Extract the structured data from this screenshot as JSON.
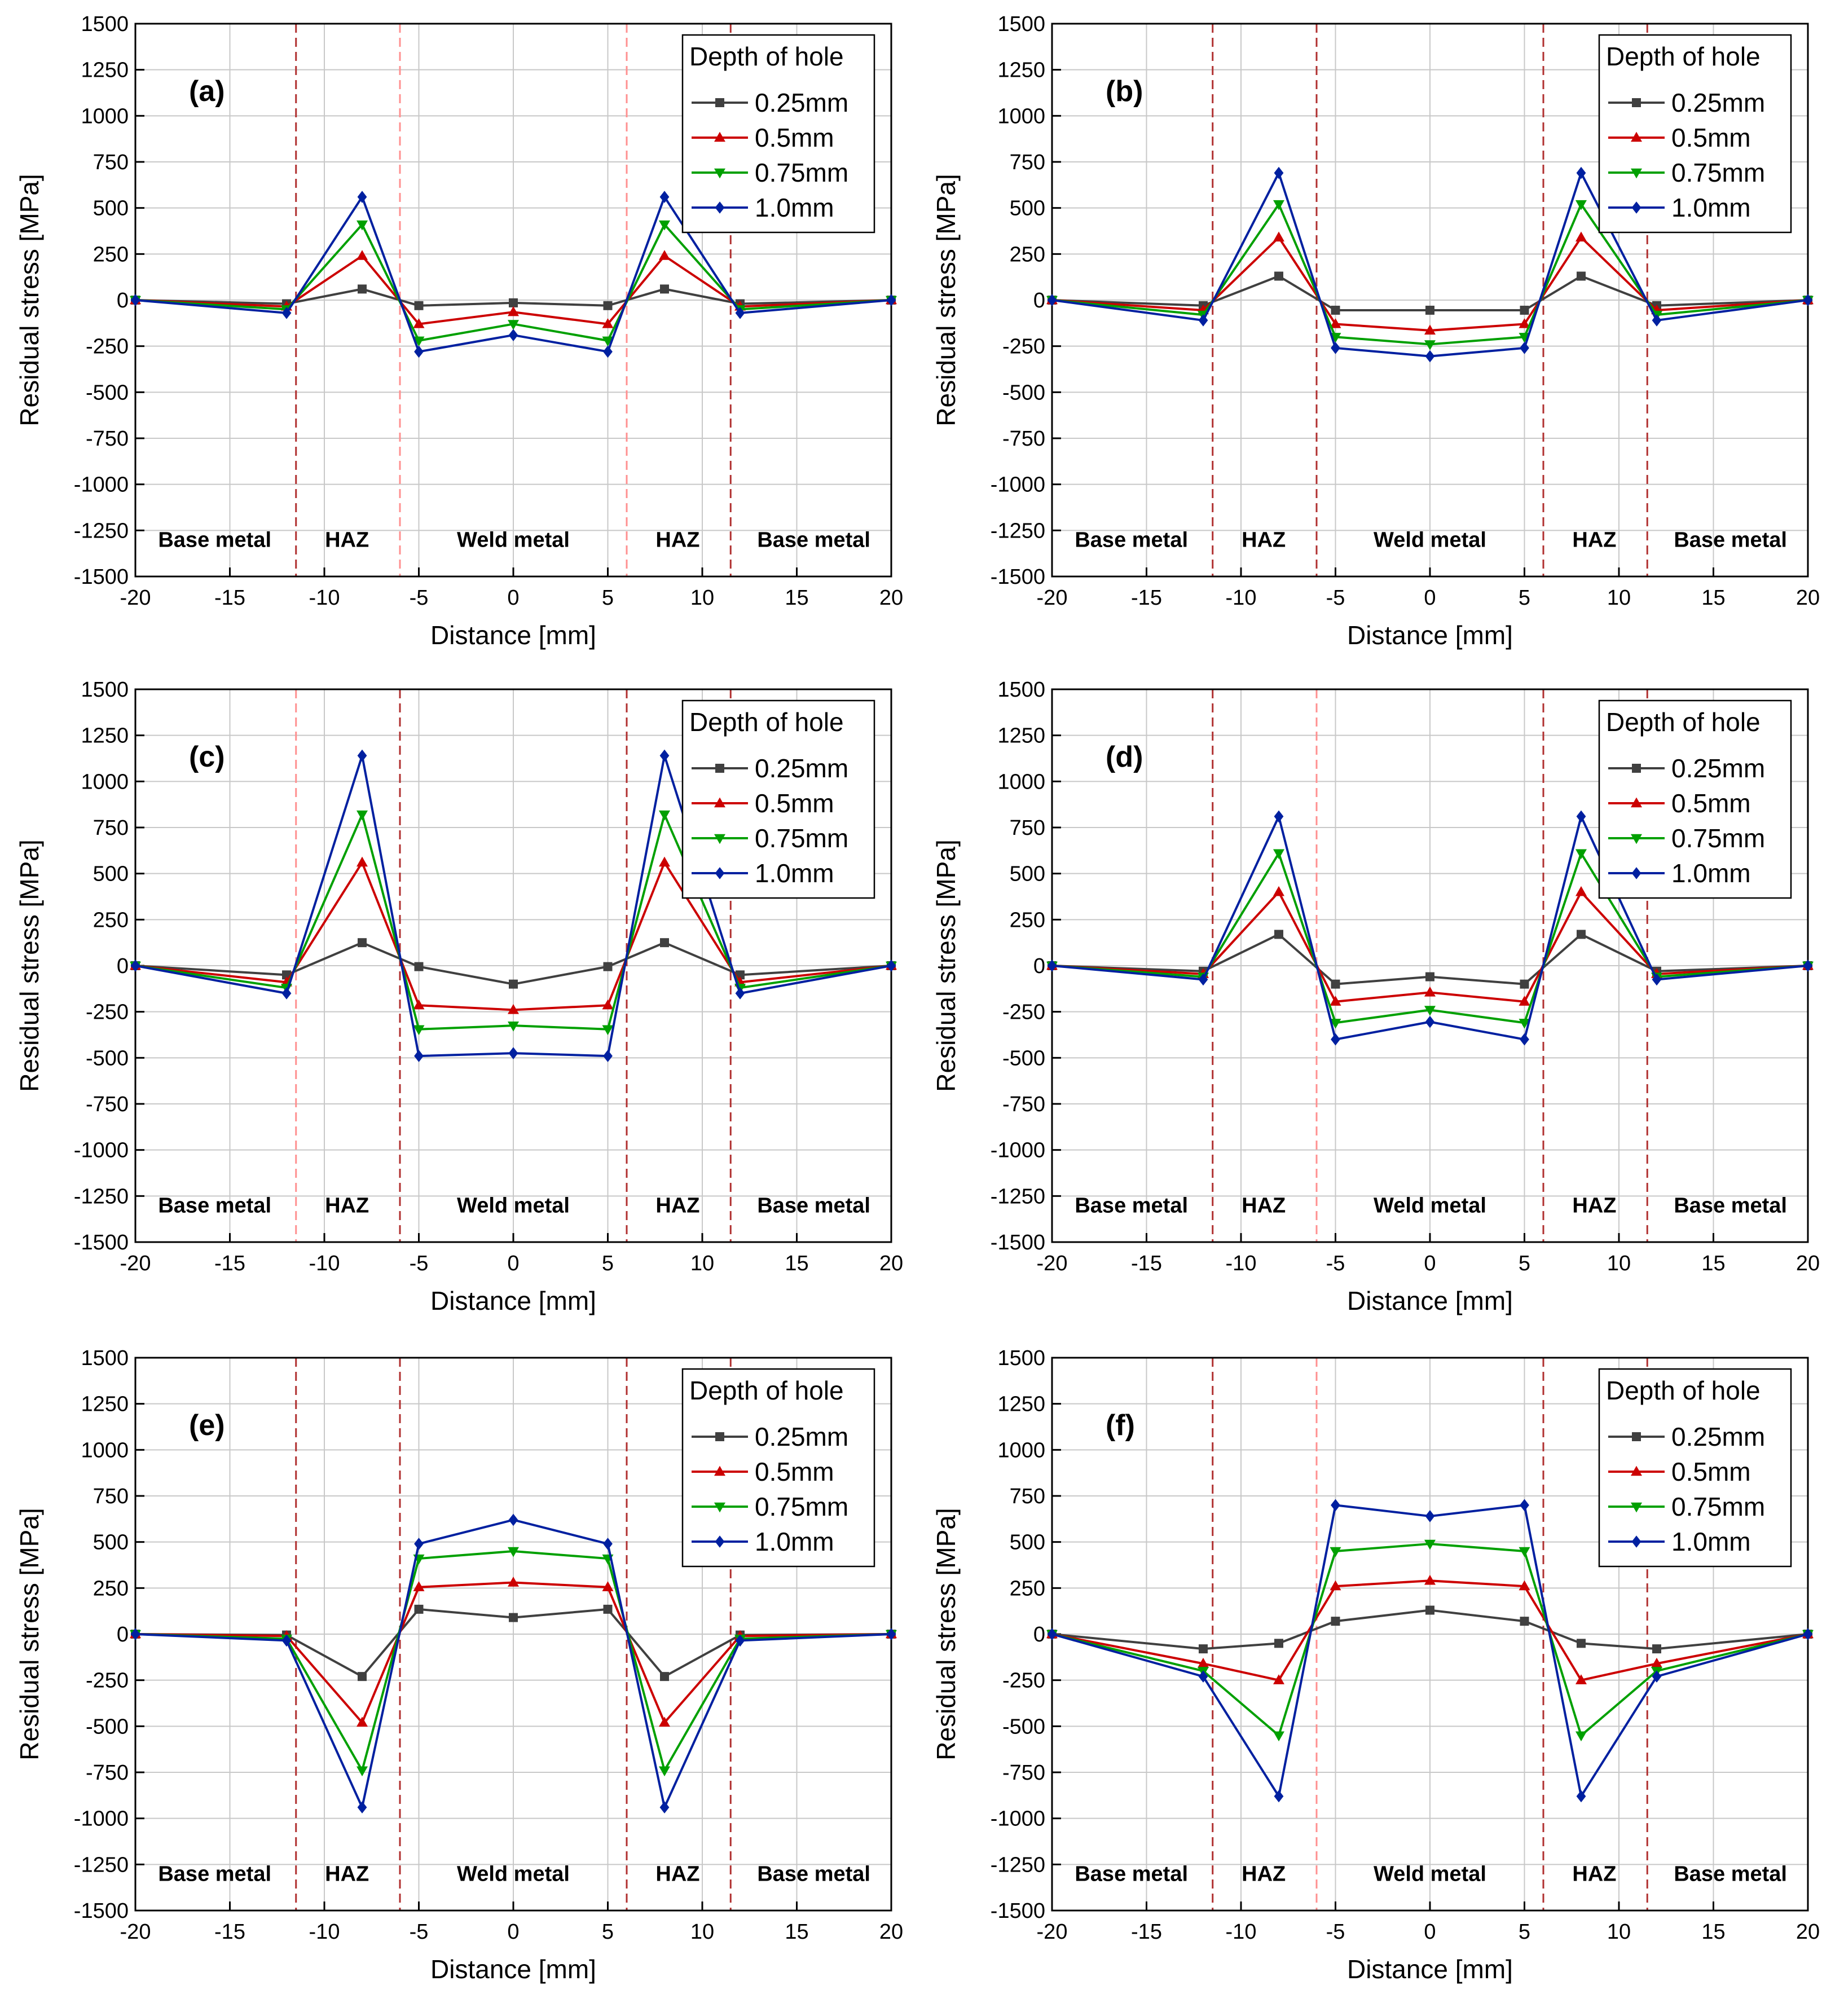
{
  "chart_data": [
    {
      "type": "line",
      "panel_label": "(a)",
      "xlabel": "Distance [mm]",
      "ylabel": "Residual stress [MPa]",
      "xlim": [
        -20,
        20
      ],
      "ylim": [
        -1500,
        1500
      ],
      "xticks": [
        -20,
        -15,
        -10,
        -5,
        0,
        5,
        10,
        15,
        20
      ],
      "yticks": [
        -1500,
        -1250,
        -1000,
        -750,
        -500,
        -250,
        0,
        250,
        500,
        750,
        1000,
        1250,
        1500
      ],
      "grid": true,
      "legend": {
        "title": "Depth of hole",
        "position": "top-right"
      },
      "x": [
        -20,
        -12,
        -8,
        -5,
        0,
        5,
        8,
        12,
        20
      ],
      "series": [
        {
          "name": "0.25mm",
          "color": "#404040",
          "marker": "square",
          "values": [
            0,
            -20,
            60,
            -30,
            -15,
            -30,
            60,
            -20,
            0
          ]
        },
        {
          "name": "0.5mm",
          "color": "#cc0000",
          "marker": "triangle-up",
          "values": [
            0,
            -35,
            240,
            -130,
            -65,
            -130,
            240,
            -35,
            0
          ]
        },
        {
          "name": "0.75mm",
          "color": "#00a000",
          "marker": "triangle-down",
          "values": [
            0,
            -50,
            410,
            -220,
            -130,
            -220,
            410,
            -50,
            0
          ]
        },
        {
          "name": "1.0mm",
          "color": "#0020a0",
          "marker": "diamond",
          "values": [
            0,
            -70,
            560,
            -280,
            -190,
            -280,
            560,
            -70,
            0
          ]
        }
      ],
      "boundaries": [
        {
          "x": -11.5,
          "color": "#b03030"
        },
        {
          "x": -6,
          "color": "#ff9090"
        },
        {
          "x": 6,
          "color": "#ff9090"
        },
        {
          "x": 11.5,
          "color": "#b03030"
        }
      ],
      "regions": [
        {
          "label": "Base metal",
          "x": -15.8
        },
        {
          "label": "HAZ",
          "x": -8.8
        },
        {
          "label": "Weld metal",
          "x": 0
        },
        {
          "label": "HAZ",
          "x": 8.7
        },
        {
          "label": "Base metal",
          "x": 15.9
        }
      ]
    },
    {
      "type": "line",
      "panel_label": "(b)",
      "xlabel": "Distance [mm]",
      "ylabel": "Residual stress [MPa]",
      "xlim": [
        -20,
        20
      ],
      "ylim": [
        -1500,
        1500
      ],
      "xticks": [
        -20,
        -15,
        -10,
        -5,
        0,
        5,
        10,
        15,
        20
      ],
      "yticks": [
        -1500,
        -1250,
        -1000,
        -750,
        -500,
        -250,
        0,
        250,
        500,
        750,
        1000,
        1250,
        1500
      ],
      "grid": true,
      "legend": {
        "title": "Depth of hole",
        "position": "top-right"
      },
      "x": [
        -20,
        -12,
        -8,
        -5,
        0,
        5,
        8,
        12,
        20
      ],
      "series": [
        {
          "name": "0.25mm",
          "color": "#404040",
          "marker": "square",
          "values": [
            0,
            -30,
            130,
            -55,
            -55,
            -55,
            130,
            -30,
            0
          ]
        },
        {
          "name": "0.5mm",
          "color": "#cc0000",
          "marker": "triangle-up",
          "values": [
            0,
            -55,
            340,
            -130,
            -165,
            -130,
            340,
            -55,
            0
          ]
        },
        {
          "name": "0.75mm",
          "color": "#00a000",
          "marker": "triangle-down",
          "values": [
            0,
            -80,
            520,
            -200,
            -240,
            -200,
            520,
            -80,
            0
          ]
        },
        {
          "name": "1.0mm",
          "color": "#0020a0",
          "marker": "diamond",
          "values": [
            0,
            -110,
            690,
            -260,
            -305,
            -260,
            690,
            -110,
            0
          ]
        }
      ],
      "boundaries": [
        {
          "x": -11.5,
          "color": "#b03030"
        },
        {
          "x": -6,
          "color": "#b03030"
        },
        {
          "x": 6,
          "color": "#b03030"
        },
        {
          "x": 11.5,
          "color": "#b03030"
        }
      ],
      "regions": [
        {
          "label": "Base metal",
          "x": -15.8
        },
        {
          "label": "HAZ",
          "x": -8.8
        },
        {
          "label": "Weld metal",
          "x": 0
        },
        {
          "label": "HAZ",
          "x": 8.7
        },
        {
          "label": "Base metal",
          "x": 15.9
        }
      ]
    },
    {
      "type": "line",
      "panel_label": "(c)",
      "xlabel": "Distance [mm]",
      "ylabel": "Residual stress [MPa]",
      "xlim": [
        -20,
        20
      ],
      "ylim": [
        -1500,
        1500
      ],
      "xticks": [
        -20,
        -15,
        -10,
        -5,
        0,
        5,
        10,
        15,
        20
      ],
      "yticks": [
        -1500,
        -1250,
        -1000,
        -750,
        -500,
        -250,
        0,
        250,
        500,
        750,
        1000,
        1250,
        1500
      ],
      "grid": true,
      "legend": {
        "title": "Depth of hole",
        "position": "top-right"
      },
      "x": [
        -20,
        -12,
        -8,
        -5,
        0,
        5,
        8,
        12,
        20
      ],
      "series": [
        {
          "name": "0.25mm",
          "color": "#404040",
          "marker": "square",
          "values": [
            0,
            -50,
            125,
            -5,
            -100,
            -5,
            125,
            -50,
            0
          ]
        },
        {
          "name": "0.5mm",
          "color": "#cc0000",
          "marker": "triangle-up",
          "values": [
            0,
            -90,
            560,
            -215,
            -240,
            -215,
            560,
            -90,
            0
          ]
        },
        {
          "name": "0.75mm",
          "color": "#00a000",
          "marker": "triangle-down",
          "values": [
            0,
            -120,
            820,
            -345,
            -325,
            -345,
            820,
            -120,
            0
          ]
        },
        {
          "name": "1.0mm",
          "color": "#0020a0",
          "marker": "diamond",
          "values": [
            0,
            -150,
            1140,
            -490,
            -475,
            -490,
            1140,
            -150,
            0
          ]
        }
      ],
      "boundaries": [
        {
          "x": -11.5,
          "color": "#ff9090"
        },
        {
          "x": -6,
          "color": "#b03030"
        },
        {
          "x": 6,
          "color": "#b03030"
        },
        {
          "x": 11.5,
          "color": "#b03030"
        }
      ],
      "regions": [
        {
          "label": "Base metal",
          "x": -15.8
        },
        {
          "label": "HAZ",
          "x": -8.8
        },
        {
          "label": "Weld metal",
          "x": 0
        },
        {
          "label": "HAZ",
          "x": 8.7
        },
        {
          "label": "Base metal",
          "x": 15.9
        }
      ]
    },
    {
      "type": "line",
      "panel_label": "(d)",
      "xlabel": "Distance [mm]",
      "ylabel": "Residual stress [MPa]",
      "xlim": [
        -20,
        20
      ],
      "ylim": [
        -1500,
        1500
      ],
      "xticks": [
        -20,
        -15,
        -10,
        -5,
        0,
        5,
        10,
        15,
        20
      ],
      "yticks": [
        -1500,
        -1250,
        -1000,
        -750,
        -500,
        -250,
        0,
        250,
        500,
        750,
        1000,
        1250,
        1500
      ],
      "grid": true,
      "legend": {
        "title": "Depth of hole",
        "position": "top-right"
      },
      "x": [
        -20,
        -12,
        -8,
        -5,
        0,
        5,
        8,
        12,
        20
      ],
      "series": [
        {
          "name": "0.25mm",
          "color": "#404040",
          "marker": "square",
          "values": [
            0,
            -30,
            170,
            -100,
            -60,
            -100,
            170,
            -30,
            0
          ]
        },
        {
          "name": "0.5mm",
          "color": "#cc0000",
          "marker": "triangle-up",
          "values": [
            0,
            -45,
            400,
            -195,
            -145,
            -195,
            400,
            -45,
            0
          ]
        },
        {
          "name": "0.75mm",
          "color": "#00a000",
          "marker": "triangle-down",
          "values": [
            0,
            -60,
            610,
            -310,
            -240,
            -310,
            610,
            -60,
            0
          ]
        },
        {
          "name": "1.0mm",
          "color": "#0020a0",
          "marker": "diamond",
          "values": [
            0,
            -75,
            810,
            -400,
            -305,
            -400,
            810,
            -75,
            0
          ]
        }
      ],
      "boundaries": [
        {
          "x": -11.5,
          "color": "#b03030"
        },
        {
          "x": -6,
          "color": "#ff9090"
        },
        {
          "x": 6,
          "color": "#b03030"
        },
        {
          "x": 11.5,
          "color": "#b03030"
        }
      ],
      "regions": [
        {
          "label": "Base metal",
          "x": -15.8
        },
        {
          "label": "HAZ",
          "x": -8.8
        },
        {
          "label": "Weld metal",
          "x": 0
        },
        {
          "label": "HAZ",
          "x": 8.7
        },
        {
          "label": "Base metal",
          "x": 15.9
        }
      ]
    },
    {
      "type": "line",
      "panel_label": "(e)",
      "xlabel": "Distance [mm]",
      "ylabel": "Residual stress [MPa]",
      "xlim": [
        -20,
        20
      ],
      "ylim": [
        -1500,
        1500
      ],
      "xticks": [
        -20,
        -15,
        -10,
        -5,
        0,
        5,
        10,
        15,
        20
      ],
      "yticks": [
        -1500,
        -1250,
        -1000,
        -750,
        -500,
        -250,
        0,
        250,
        500,
        750,
        1000,
        1250,
        1500
      ],
      "grid": true,
      "legend": {
        "title": "Depth of hole",
        "position": "top-right"
      },
      "x": [
        -20,
        -12,
        -8,
        -5,
        0,
        5,
        8,
        12,
        20
      ],
      "series": [
        {
          "name": "0.25mm",
          "color": "#404040",
          "marker": "square",
          "values": [
            0,
            -5,
            -230,
            135,
            90,
            135,
            -230,
            -5,
            0
          ]
        },
        {
          "name": "0.5mm",
          "color": "#cc0000",
          "marker": "triangle-up",
          "values": [
            0,
            -10,
            -480,
            255,
            280,
            255,
            -480,
            -10,
            0
          ]
        },
        {
          "name": "0.75mm",
          "color": "#00a000",
          "marker": "triangle-down",
          "values": [
            0,
            -25,
            -740,
            410,
            450,
            410,
            -740,
            -25,
            0
          ]
        },
        {
          "name": "1.0mm",
          "color": "#0020a0",
          "marker": "diamond",
          "values": [
            0,
            -35,
            -940,
            490,
            620,
            490,
            -940,
            -35,
            0
          ]
        }
      ],
      "boundaries": [
        {
          "x": -11.5,
          "color": "#b03030"
        },
        {
          "x": -6,
          "color": "#b03030"
        },
        {
          "x": 6,
          "color": "#b03030"
        },
        {
          "x": 11.5,
          "color": "#b03030"
        }
      ],
      "regions": [
        {
          "label": "Base metal",
          "x": -15.8
        },
        {
          "label": "HAZ",
          "x": -8.8
        },
        {
          "label": "Weld metal",
          "x": 0
        },
        {
          "label": "HAZ",
          "x": 8.7
        },
        {
          "label": "Base metal",
          "x": 15.9
        }
      ]
    },
    {
      "type": "line",
      "panel_label": "(f)",
      "xlabel": "Distance [mm]",
      "ylabel": "Residual stress [MPa]",
      "xlim": [
        -20,
        20
      ],
      "ylim": [
        -1500,
        1500
      ],
      "xticks": [
        -20,
        -15,
        -10,
        -5,
        0,
        5,
        10,
        15,
        20
      ],
      "yticks": [
        -1500,
        -1250,
        -1000,
        -750,
        -500,
        -250,
        0,
        250,
        500,
        750,
        1000,
        1250,
        1500
      ],
      "grid": true,
      "legend": {
        "title": "Depth of hole",
        "position": "top-right"
      },
      "x": [
        -20,
        -12,
        -8,
        -5,
        0,
        5,
        8,
        12,
        20
      ],
      "series": [
        {
          "name": "0.25mm",
          "color": "#404040",
          "marker": "square",
          "values": [
            0,
            -80,
            -50,
            70,
            130,
            70,
            -50,
            -80,
            0
          ]
        },
        {
          "name": "0.5mm",
          "color": "#cc0000",
          "marker": "triangle-up",
          "values": [
            0,
            -160,
            -250,
            260,
            290,
            260,
            -250,
            -160,
            0
          ]
        },
        {
          "name": "0.75mm",
          "color": "#00a000",
          "marker": "triangle-down",
          "values": [
            0,
            -200,
            -550,
            450,
            490,
            450,
            -550,
            -200,
            0
          ]
        },
        {
          "name": "1.0mm",
          "color": "#0020a0",
          "marker": "diamond",
          "values": [
            0,
            -230,
            -880,
            700,
            640,
            700,
            -880,
            -230,
            0
          ]
        }
      ],
      "boundaries": [
        {
          "x": -11.5,
          "color": "#b03030"
        },
        {
          "x": -6,
          "color": "#ff9090"
        },
        {
          "x": 6,
          "color": "#b03030"
        },
        {
          "x": 11.5,
          "color": "#b03030"
        }
      ],
      "regions": [
        {
          "label": "Base metal",
          "x": -15.8
        },
        {
          "label": "HAZ",
          "x": -8.8
        },
        {
          "label": "Weld metal",
          "x": 0
        },
        {
          "label": "HAZ",
          "x": 8.7
        },
        {
          "label": "Base metal",
          "x": 15.9
        }
      ]
    }
  ]
}
